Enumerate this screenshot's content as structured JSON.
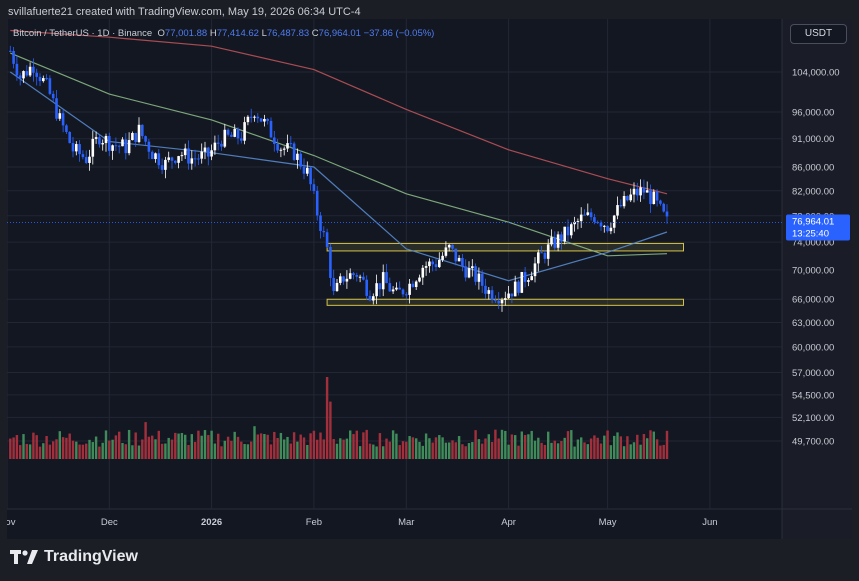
{
  "header": {
    "text": "svillafuerte21 created with TradingView.com, May 19, 2026 06:34 UTC-4"
  },
  "symbol": {
    "title": "Bitcoin / TetherUS · 1D · Binance",
    "o_label": "O",
    "o": "77,001.88",
    "h_label": "H",
    "h": "77,414.62",
    "l_label": "L",
    "l": "76,487.83",
    "c_label": "C",
    "c": "76,964.01",
    "change": "−37.86 (−0.05%)"
  },
  "currency_button": "USDT",
  "last_price": {
    "value": "76,964.01",
    "countdown": "13:25:40"
  },
  "logo": {
    "text": "TradingView",
    "icon": "tradingview-logo-icon"
  },
  "colors": {
    "background": "#131722",
    "up": "#ffffff",
    "down": "#2962ff",
    "ma_red": "#c4565c",
    "ma_green": "#8fbf8a",
    "ma_blue": "#5b8fd6",
    "zone": "#d4c24a",
    "volume_up": "#3f8b5a",
    "volume_down": "#a2303c",
    "price_tag": "#2962ff"
  },
  "chart_data": {
    "type": "candlestick",
    "price_scale": "log",
    "y_ticks": [
      "104,000.00",
      "96,000.00",
      "91,000.00",
      "86,000.00",
      "82,000.00",
      "78,000.00",
      "74,000.00",
      "70,000.00",
      "66,000.00",
      "63,000.00",
      "60,000.00",
      "57,000.00",
      "54,500.00",
      "52,100.00",
      "49,700.00"
    ],
    "x_ticks": [
      "Nov",
      "Dec",
      "2026",
      "Feb",
      "Mar",
      "Apr",
      "May",
      "Jun"
    ],
    "close_path": [
      [
        "2025-11-01",
        108500
      ],
      [
        "2025-11-04",
        103000
      ],
      [
        "2025-11-08",
        105500
      ],
      [
        "2025-11-12",
        101000
      ],
      [
        "2025-11-16",
        94500
      ],
      [
        "2025-11-20",
        89000
      ],
      [
        "2025-11-24",
        87500
      ],
      [
        "2025-11-28",
        91500
      ],
      [
        "2025-12-02",
        90000
      ],
      [
        "2025-12-06",
        89500
      ],
      [
        "2025-12-10",
        92500
      ],
      [
        "2025-12-14",
        88500
      ],
      [
        "2025-12-18",
        86500
      ],
      [
        "2025-12-22",
        88500
      ],
      [
        "2025-12-26",
        87500
      ],
      [
        "2025-12-31",
        88000
      ],
      [
        "2026-01-04",
        91000
      ],
      [
        "2026-01-10",
        91500
      ],
      [
        "2026-01-14",
        96500
      ],
      [
        "2026-01-18",
        93000
      ],
      [
        "2026-01-22",
        89500
      ],
      [
        "2026-01-26",
        88500
      ],
      [
        "2026-01-30",
        85000
      ],
      [
        "2026-02-02",
        78500
      ],
      [
        "2026-02-05",
        73000
      ],
      [
        "2026-02-07",
        66500
      ],
      [
        "2026-02-10",
        69000
      ],
      [
        "2026-02-14",
        69500
      ],
      [
        "2026-02-18",
        67000
      ],
      [
        "2026-02-22",
        68500
      ],
      [
        "2026-02-26",
        66500
      ],
      [
        "2026-03-02",
        68000
      ],
      [
        "2026-03-06",
        70500
      ],
      [
        "2026-03-10",
        71000
      ],
      [
        "2026-03-14",
        73000
      ],
      [
        "2026-03-18",
        70500
      ],
      [
        "2026-03-22",
        69000
      ],
      [
        "2026-03-26",
        67000
      ],
      [
        "2026-03-30",
        66500
      ],
      [
        "2026-04-03",
        67500
      ],
      [
        "2026-04-07",
        69500
      ],
      [
        "2026-04-11",
        72000
      ],
      [
        "2026-04-15",
        74000
      ],
      [
        "2026-04-19",
        75500
      ],
      [
        "2026-04-23",
        77500
      ],
      [
        "2026-04-27",
        78000
      ],
      [
        "2026-05-01",
        76500
      ],
      [
        "2026-05-05",
        79500
      ],
      [
        "2026-05-09",
        81500
      ],
      [
        "2026-05-12",
        82000
      ],
      [
        "2026-05-15",
        80500
      ],
      [
        "2026-05-19",
        76964
      ]
    ],
    "moving_averages": [
      {
        "color": "red",
        "points": [
          [
            "2025-11-01",
            113000
          ],
          [
            "2025-12-01",
            111500
          ],
          [
            "2026-01-01",
            109500
          ],
          [
            "2026-02-01",
            104500
          ],
          [
            "2026-03-01",
            96500
          ],
          [
            "2026-04-01",
            89000
          ],
          [
            "2026-05-01",
            84000
          ],
          [
            "2026-05-19",
            81500
          ]
        ]
      },
      {
        "color": "green",
        "points": [
          [
            "2025-11-01",
            108000
          ],
          [
            "2025-12-01",
            99500
          ],
          [
            "2026-01-01",
            94500
          ],
          [
            "2026-02-01",
            88000
          ],
          [
            "2026-03-01",
            81500
          ],
          [
            "2026-04-01",
            77000
          ],
          [
            "2026-05-01",
            72000
          ],
          [
            "2026-05-19",
            72300
          ]
        ]
      },
      {
        "color": "blue",
        "points": [
          [
            "2025-11-01",
            104000
          ],
          [
            "2025-12-01",
            90500
          ],
          [
            "2026-01-01",
            88500
          ],
          [
            "2026-02-01",
            86000
          ],
          [
            "2026-03-01",
            73000
          ],
          [
            "2026-04-01",
            68500
          ],
          [
            "2026-05-01",
            72500
          ],
          [
            "2026-05-19",
            75500
          ]
        ]
      }
    ],
    "zones": [
      {
        "from": "2026-02-05",
        "to": "2026-05-24",
        "low": 72700,
        "high": 73800
      },
      {
        "from": "2026-02-05",
        "to": "2026-05-24",
        "low": 65200,
        "high": 66000
      }
    ],
    "volume_spikes": [
      [
        "2026-02-05",
        1.0
      ],
      [
        "2026-02-06",
        0.7
      ],
      [
        "2025-12-12",
        0.45
      ],
      [
        "2026-01-14",
        0.4
      ]
    ]
  }
}
